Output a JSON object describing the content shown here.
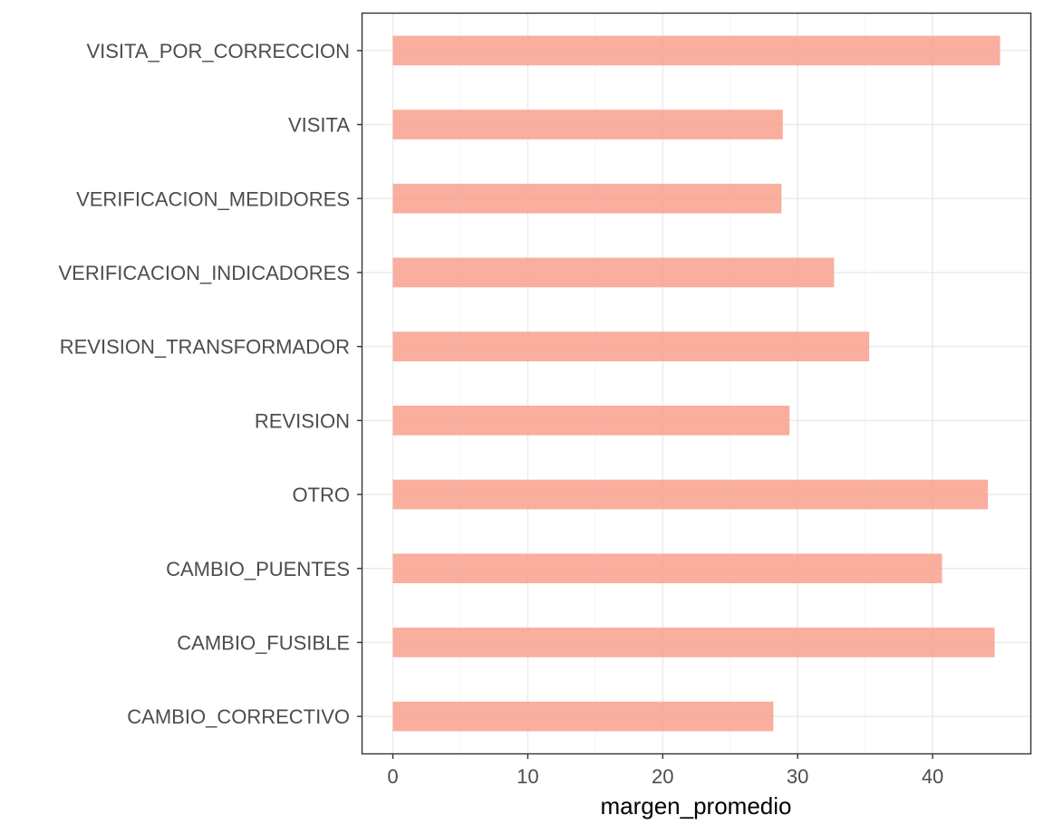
{
  "chart_data": {
    "type": "bar",
    "orientation": "horizontal",
    "categories": [
      "CAMBIO_CORRECTIVO",
      "CAMBIO_FUSIBLE",
      "CAMBIO_PUENTES",
      "OTRO",
      "REVISION",
      "REVISION_TRANSFORMADOR",
      "VERIFICACION_INDICADORES",
      "VERIFICACION_MEDIDORES",
      "VISITA",
      "VISITA_POR_CORRECCION"
    ],
    "values": [
      28.2,
      44.6,
      40.7,
      44.1,
      29.4,
      35.3,
      32.7,
      28.8,
      28.9,
      45.0
    ],
    "title": "",
    "xlabel": "margen_promedio",
    "ylabel": "",
    "xlim": [
      -2.25,
      47.25
    ],
    "xticks": [
      0,
      10,
      20,
      30,
      40
    ],
    "grid": true,
    "legend": "none",
    "colors": {
      "bar": "#F8A08D",
      "bar_opacity": 0.85,
      "grid_major": "#EBEBEB",
      "grid_minor": "#F5F5F5",
      "panel_border": "#333333",
      "tick_text": "#4D4D4D",
      "title_text": "#000000"
    }
  }
}
